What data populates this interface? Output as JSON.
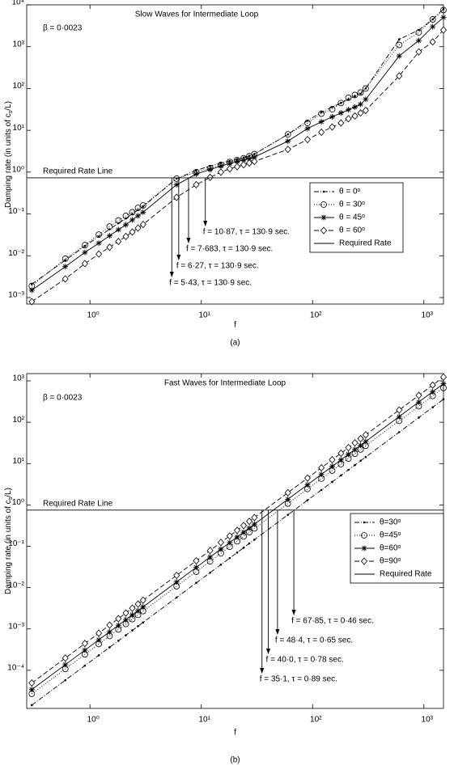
{
  "chart_data": [
    {
      "type": "line",
      "title": "Slow Waves for Intermediate Loop",
      "note": "β = 0·0023",
      "reference_label": "Required Rate Line",
      "x_label": "f",
      "y_label": [
        "Damping rate (in units of c",
        "s",
        "/L)"
      ],
      "caption": "(a)",
      "xscale": "log",
      "yscale": "log",
      "xlim": [
        0.27,
        1500
      ],
      "ylim": [
        0.0007,
        10000
      ],
      "xticks": [
        {
          "value": 1,
          "label": "10⁰"
        },
        {
          "value": 10,
          "label": "10¹"
        },
        {
          "value": 100,
          "label": "10²"
        },
        {
          "value": 1000,
          "label": "10³"
        }
      ],
      "yticks": [
        {
          "value": 0.001,
          "label": "10⁻³"
        },
        {
          "value": 0.01,
          "label": "10⁻²"
        },
        {
          "value": 0.1,
          "label": "10⁻¹"
        },
        {
          "value": 1,
          "label": "10⁰"
        },
        {
          "value": 10,
          "label": "10¹"
        },
        {
          "value": 100,
          "label": "10²"
        },
        {
          "value": 1000,
          "label": "10³"
        },
        {
          "value": 10000,
          "label": "10⁴"
        }
      ],
      "legend": "lower right",
      "x": [
        0.3,
        0.6,
        0.9,
        1.2,
        1.5,
        1.8,
        2.1,
        2.4,
        2.7,
        3,
        6,
        9,
        12,
        15,
        18,
        21,
        24,
        27,
        30,
        60,
        90,
        120,
        150,
        180,
        210,
        240,
        270,
        300,
        600,
        900,
        1200,
        1500
      ],
      "series": [
        {
          "name": "θ = 0ᵒ",
          "color": "#000000",
          "marker": "dot",
          "dash": "dashdot",
          "values": [
            0.0021,
            0.0078,
            0.017,
            0.029,
            0.043,
            0.06,
            0.078,
            0.1,
            0.125,
            0.15,
            0.7,
            1.1,
            1.4,
            1.65,
            1.85,
            2.05,
            2.25,
            2.45,
            2.7,
            8,
            17,
            27,
            36,
            45,
            55,
            65,
            75,
            100,
            1500,
            2500,
            4500,
            8000
          ]
        },
        {
          "name": "θ = 30ᵒ",
          "color": "#000000",
          "marker": "circle",
          "dash": "dotted",
          "values": [
            0.0019,
            0.0085,
            0.018,
            0.032,
            0.05,
            0.07,
            0.09,
            0.11,
            0.14,
            0.16,
            0.7,
            1.0,
            1.25,
            1.5,
            1.75,
            1.95,
            2.15,
            2.4,
            2.7,
            8,
            15,
            25,
            32,
            45,
            60,
            70,
            80,
            100,
            1100,
            2200,
            4500,
            7500
          ]
        },
        {
          "name": "θ = 45ᵒ",
          "color": "#000000",
          "marker": "star",
          "dash": "solid",
          "values": [
            0.0015,
            0.0055,
            0.012,
            0.02,
            0.03,
            0.042,
            0.055,
            0.072,
            0.09,
            0.11,
            0.5,
            0.9,
            1.15,
            1.4,
            1.6,
            1.8,
            1.95,
            2.1,
            2.3,
            5.5,
            11,
            16,
            21,
            26,
            31,
            36,
            42,
            55,
            600,
            1400,
            3000,
            5000
          ]
        },
        {
          "name": "θ = 60ᵒ",
          "color": "#000000",
          "marker": "diamond",
          "dash": "dashed",
          "values": [
            0.0008,
            0.0028,
            0.0065,
            0.011,
            0.016,
            0.022,
            0.029,
            0.037,
            0.046,
            0.056,
            0.25,
            0.5,
            0.75,
            1.0,
            1.2,
            1.35,
            1.5,
            1.65,
            1.8,
            3.5,
            6,
            9,
            12,
            15,
            19,
            22,
            26,
            30,
            200,
            750,
            1300,
            2500
          ]
        },
        {
          "name": "Required Rate",
          "color": "#000000",
          "marker": "none",
          "dash": "solid",
          "x": [
            0.27,
            1500
          ],
          "values": [
            0.73,
            0.73
          ]
        }
      ],
      "arrows": [
        {
          "text": "f = 5·43, τ = 130·9 sec.",
          "x": 5.43
        },
        {
          "text": "f = 6·27, τ = 130·9 sec.",
          "x": 6.27
        },
        {
          "text": "f = 7·683, τ = 130·9 sec.",
          "x": 7.683
        },
        {
          "text": "f = 10·87, τ = 130·9 sec.",
          "x": 10.87
        }
      ]
    },
    {
      "type": "line",
      "title": "Fast Waves for Intermediate Loop",
      "note": "β = 0·0023",
      "reference_label": "Required Rate Line",
      "x_label": "f",
      "y_label": [
        "Damping rate (in units of c",
        "s",
        "/L)"
      ],
      "caption": "(b)",
      "xscale": "log",
      "yscale": "log",
      "xlim": [
        0.27,
        1500
      ],
      "ylim": [
        1.2e-05,
        1500
      ],
      "xticks": [
        {
          "value": 1,
          "label": "10⁰"
        },
        {
          "value": 10,
          "label": "10¹"
        },
        {
          "value": 100,
          "label": "10²"
        },
        {
          "value": 1000,
          "label": "10³"
        }
      ],
      "yticks": [
        {
          "value": 0.0001,
          "label": "10⁻⁴"
        },
        {
          "value": 0.001,
          "label": "10⁻³"
        },
        {
          "value": 0.01,
          "label": "10⁻²"
        },
        {
          "value": 0.1,
          "label": "10⁻¹"
        },
        {
          "value": 1,
          "label": "10⁰"
        },
        {
          "value": 10,
          "label": "10¹"
        },
        {
          "value": 100,
          "label": "10²"
        },
        {
          "value": 1000,
          "label": "10³"
        }
      ],
      "legend": "center right",
      "x": [
        0.3,
        0.6,
        0.9,
        1.2,
        1.5,
        1.8,
        2.1,
        2.4,
        2.7,
        3,
        6,
        9,
        12,
        15,
        18,
        21,
        24,
        27,
        30,
        60,
        90,
        120,
        150,
        180,
        210,
        240,
        270,
        300,
        600,
        900,
        1200,
        1500
      ],
      "series": [
        {
          "name": "θ=30ᵒ",
          "color": "#000000",
          "marker": "dot",
          "dash": "dashdot",
          "values": [
            1.44e-05,
            5.76e-05,
            0.00013,
            0.00023,
            0.00036,
            0.000518,
            0.000706,
            0.000922,
            0.00117,
            0.00144,
            0.00576,
            0.013,
            0.023,
            0.036,
            0.0518,
            0.0706,
            0.0922,
            0.117,
            0.144,
            0.576,
            1.3,
            2.3,
            3.6,
            5.18,
            7.06,
            9.22,
            11.7,
            14.4,
            57.6,
            130,
            230,
            360
          ]
        },
        {
          "name": "θ=45ᵒ",
          "color": "#000000",
          "marker": "circle",
          "dash": "dotted",
          "values": [
            2.7e-05,
            0.000108,
            0.000243,
            0.000432,
            0.000675,
            0.000972,
            0.00132,
            0.00173,
            0.00219,
            0.0027,
            0.0108,
            0.0243,
            0.0432,
            0.0675,
            0.0972,
            0.132,
            0.173,
            0.219,
            0.27,
            1.08,
            2.43,
            4.32,
            6.75,
            9.72,
            13.2,
            17.3,
            21.9,
            27,
            108,
            243,
            432,
            675
          ]
        },
        {
          "name": "θ=60ᵒ",
          "color": "#000000",
          "marker": "star",
          "dash": "solid",
          "values": [
            3.42e-05,
            0.000137,
            0.000308,
            0.000547,
            0.000855,
            0.00123,
            0.00168,
            0.00219,
            0.00277,
            0.00342,
            0.0137,
            0.0308,
            0.0547,
            0.0855,
            0.123,
            0.168,
            0.219,
            0.277,
            0.342,
            1.37,
            3.08,
            5.47,
            8.55,
            12.3,
            16.8,
            21.9,
            27.7,
            34.2,
            137,
            308,
            547,
            855
          ]
        },
        {
          "name": "θ=90ᵒ",
          "color": "#000000",
          "marker": "diamond",
          "dash": "dashed",
          "values": [
            4.95e-05,
            0.000198,
            0.000446,
            0.000792,
            0.00124,
            0.00178,
            0.00243,
            0.00317,
            0.00401,
            0.00495,
            0.0198,
            0.0446,
            0.0792,
            0.124,
            0.178,
            0.243,
            0.317,
            0.401,
            0.495,
            1.98,
            4.46,
            7.92,
            12.4,
            17.8,
            24.3,
            31.7,
            40.1,
            49.5,
            198,
            446,
            792,
            1240
          ]
        },
        {
          "name": "Required Rate",
          "color": "#000000",
          "marker": "none",
          "dash": "solid",
          "x": [
            0.27,
            1500
          ],
          "values": [
            0.75,
            0.75
          ]
        }
      ],
      "arrows": [
        {
          "text": "f = 35·1, τ = 0·89 sec.",
          "x": 35.1
        },
        {
          "text": "f = 40·0, τ = 0·78 sec.",
          "x": 40.0
        },
        {
          "text": "f = 48·4, τ = 0·65 sec.",
          "x": 48.4
        },
        {
          "text": "f = 67·85, τ = 0·46 sec.",
          "x": 67.85
        }
      ]
    }
  ]
}
